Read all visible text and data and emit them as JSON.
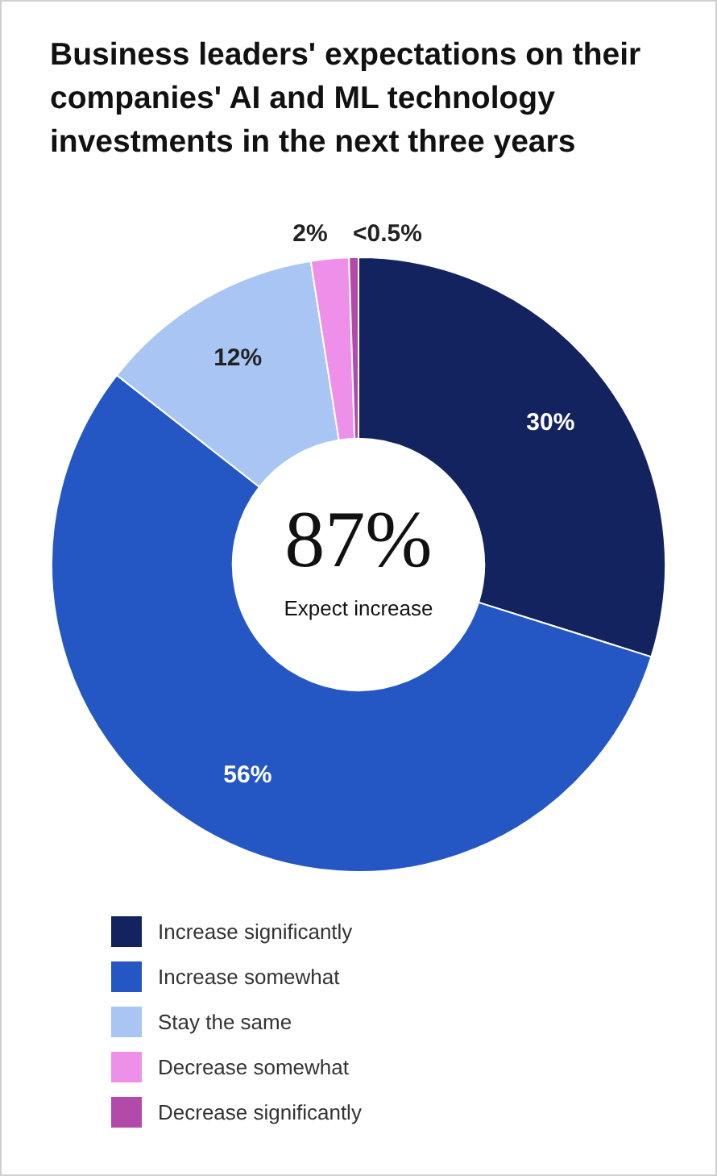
{
  "chart_data": {
    "type": "donut",
    "title": "Business leaders' expectations on their companies' AI and ML technology investments in the next three years",
    "categories": [
      "Increase significantly",
      "Increase somewhat",
      "Stay the same",
      "Decrease somewhat",
      "Decrease significantly"
    ],
    "values": [
      30,
      56,
      12,
      2,
      0.5
    ],
    "value_labels": [
      "30%",
      "56%",
      "12%",
      "2%",
      "<0.5%"
    ],
    "colors": [
      "#13235f",
      "#2557c4",
      "#a9c5f3",
      "#ee8fea",
      "#b24aa9"
    ],
    "annotations": [
      "87%",
      "Expect increase"
    ],
    "legend": "bottom"
  }
}
